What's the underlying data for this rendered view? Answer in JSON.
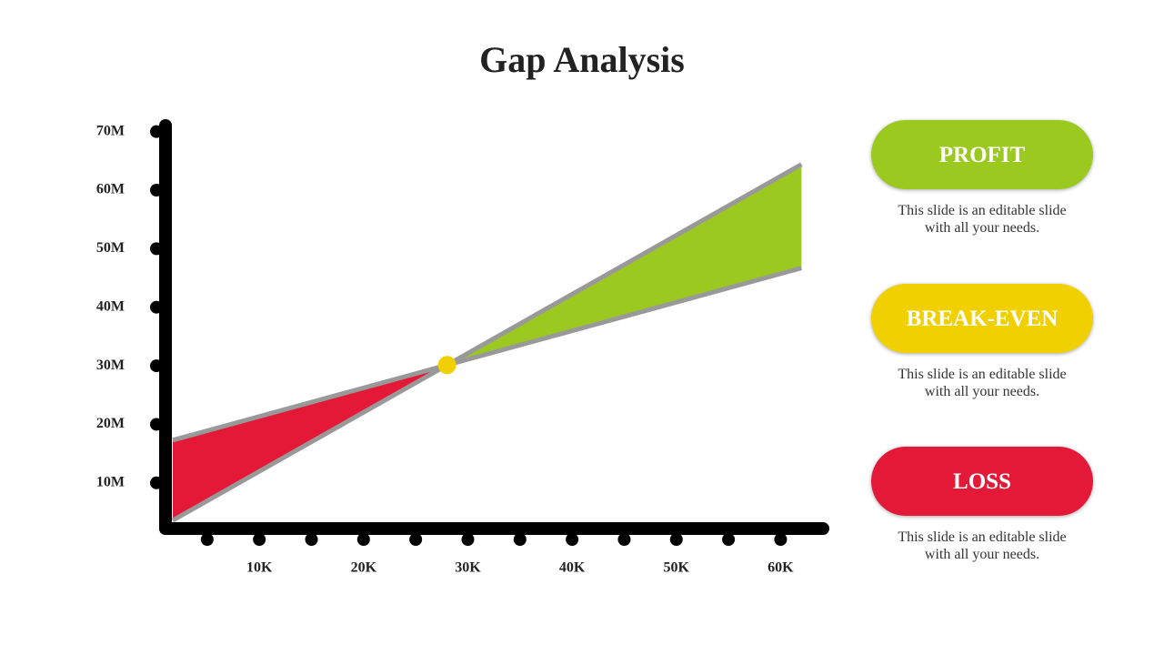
{
  "chart_data": {
    "type": "line",
    "title": "Gap Analysis",
    "x": [
      1.7,
      62
    ],
    "series": [
      {
        "color": "#999999",
        "values": [
          3.6,
          64.4
        ]
      },
      {
        "color": "#999999",
        "values": [
          17.3,
          46.7
        ]
      }
    ],
    "xlim": [
      1,
      64.5
    ],
    "ylim": [
      2.2,
      71.5
    ],
    "xticks": [
      {
        "value": 10,
        "label": "10K"
      },
      {
        "value": 20,
        "label": "20K"
      },
      {
        "value": 30,
        "label": "30K"
      },
      {
        "value": 40,
        "label": "40K"
      },
      {
        "value": 50,
        "label": "50K"
      },
      {
        "value": 60,
        "label": "60K"
      }
    ],
    "xminorticks": [
      5,
      15,
      25,
      35,
      45,
      55
    ],
    "yticks": [
      {
        "value": 10,
        "label": "10M"
      },
      {
        "value": 20,
        "label": "20M"
      },
      {
        "value": 30,
        "label": "30M"
      },
      {
        "value": 40,
        "label": "40M"
      },
      {
        "value": 50,
        "label": "50M"
      },
      {
        "value": 60,
        "label": "60M"
      },
      {
        "value": 70,
        "label": "70M"
      }
    ],
    "marker_color": "#f0d000"
  },
  "cards": [
    {
      "label": "PROFIT",
      "color": "#9bc91f",
      "text": "This slide is an editable slide with all your needs."
    },
    {
      "label": "BREAK-EVEN",
      "color": "#f0d000",
      "text": "This slide is an editable slide with all your needs."
    },
    {
      "label": "LOSS",
      "color": "#e31937",
      "text": "This slide is an editable slide with all your needs."
    }
  ]
}
